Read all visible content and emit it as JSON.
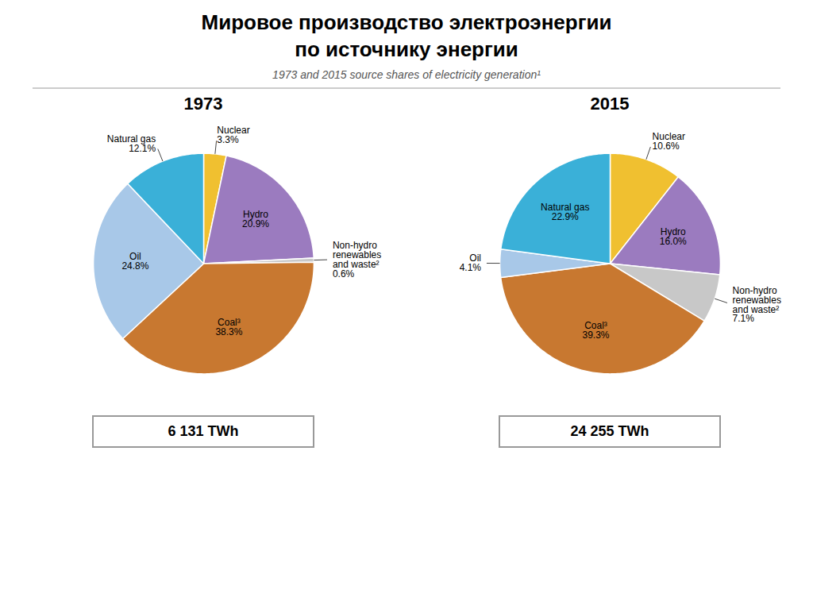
{
  "title": "Мировое производство электроэнергии\nпо источнику энергии",
  "subtitle": "1973 and 2015 source shares of electricity generation¹",
  "chart_data": [
    {
      "type": "pie",
      "title": "1973",
      "categories": [
        "Nuclear",
        "Hydro",
        "Non-hydro\nrenewables\nand waste²",
        "Coal³",
        "Oil",
        "Natural gas"
      ],
      "values": [
        3.3,
        20.9,
        0.6,
        38.3,
        24.8,
        12.1
      ],
      "value_labels": [
        "3.3%",
        "20.9%",
        "0.6%",
        "38.3%",
        "24.8%",
        "12.1%"
      ],
      "colors": [
        "#f0c030",
        "#9b7bbf",
        "#c8c8c8",
        "#c87830",
        "#a8c8e8",
        "#3ab0d8"
      ],
      "data_labels": true,
      "annotations": [
        "6 131 TWh"
      ]
    },
    {
      "type": "pie",
      "title": "2015",
      "categories": [
        "Nuclear",
        "Hydro",
        "Non-hydro\nrenewables\nand waste²",
        "Coal³",
        "Oil",
        "Natural gas"
      ],
      "values": [
        10.6,
        16.0,
        7.1,
        39.3,
        4.1,
        22.9
      ],
      "value_labels": [
        "10.6%",
        "16.0%",
        "7.1%",
        "39.3%",
        "4.1%",
        "22.9%"
      ],
      "colors": [
        "#f0c030",
        "#9b7bbf",
        "#c8c8c8",
        "#c87830",
        "#a8c8e8",
        "#3ab0d8"
      ],
      "data_labels": true,
      "annotations": [
        "24 255 TWh"
      ]
    }
  ]
}
